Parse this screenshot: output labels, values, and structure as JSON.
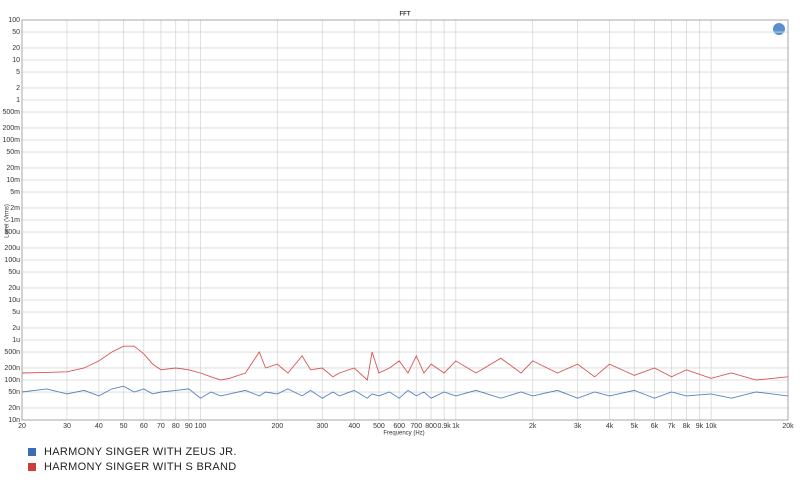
{
  "chart_data": {
    "type": "line",
    "title": "FFT",
    "x_label": "Frequency (Hz)",
    "y_label": "Level (Vrms)",
    "log_x": true,
    "log_y": true,
    "grid": true,
    "legend": "bottom-left",
    "xlim": [
      20,
      20000
    ],
    "ylim": [
      1e-08,
      100
    ],
    "xticks": [
      20,
      30,
      40,
      50,
      60,
      70,
      80,
      90,
      100,
      200,
      300,
      400,
      500,
      600,
      700,
      800,
      {
        "value": 900,
        "label": "0.9k"
      },
      {
        "value": 1000,
        "label": "1k"
      },
      {
        "value": 2000,
        "label": "2k"
      },
      {
        "value": 3000,
        "label": "3k"
      },
      {
        "value": 4000,
        "label": "4k"
      },
      {
        "value": 5000,
        "label": "5k"
      },
      {
        "value": 6000,
        "label": "6k"
      },
      {
        "value": 7000,
        "label": "7k"
      },
      {
        "value": 8000,
        "label": "8k"
      },
      {
        "value": 9000,
        "label": "9k"
      },
      {
        "value": 10000,
        "label": "10k"
      },
      {
        "value": 20000,
        "label": "20k"
      }
    ],
    "yticks": [
      100,
      50,
      20,
      10,
      5,
      2,
      1,
      {
        "value": 0.5,
        "label": "500m"
      },
      {
        "value": 0.2,
        "label": "200m"
      },
      {
        "value": 0.1,
        "label": "100m"
      },
      {
        "value": 0.05,
        "label": "50m"
      },
      {
        "value": 0.02,
        "label": "20m"
      },
      {
        "value": 0.01,
        "label": "10m"
      },
      {
        "value": 0.005,
        "label": "5m"
      },
      {
        "value": 0.002,
        "label": "2m"
      },
      {
        "value": 0.001,
        "label": "1m"
      },
      {
        "value": 0.0005,
        "label": "500u"
      },
      {
        "value": 0.0002,
        "label": "200u"
      },
      {
        "value": 0.0001,
        "label": "100u"
      },
      {
        "value": 5e-05,
        "label": "50u"
      },
      {
        "value": 2e-05,
        "label": "20u"
      },
      {
        "value": 1e-05,
        "label": "10u"
      },
      {
        "value": 5e-06,
        "label": "5u"
      },
      {
        "value": 2e-06,
        "label": "2u"
      },
      {
        "value": 1e-06,
        "label": "1u"
      },
      {
        "value": 5e-07,
        "label": "500n"
      },
      {
        "value": 2e-07,
        "label": "200n"
      },
      {
        "value": 1e-07,
        "label": "100n"
      },
      {
        "value": 5e-08,
        "label": "50n"
      },
      {
        "value": 2e-08,
        "label": "20n"
      },
      {
        "value": 1e-08,
        "label": "10n"
      }
    ],
    "x": [
      20,
      25,
      30,
      35,
      40,
      45,
      50,
      55,
      60,
      65,
      70,
      80,
      90,
      100,
      110,
      120,
      130,
      150,
      170,
      180,
      200,
      220,
      250,
      270,
      300,
      330,
      350,
      400,
      450,
      470,
      500,
      550,
      600,
      650,
      700,
      750,
      800,
      900,
      1000,
      1200,
      1500,
      1800,
      2000,
      2500,
      3000,
      3500,
      4000,
      5000,
      6000,
      7000,
      8000,
      10000,
      12000,
      15000,
      20000
    ],
    "series": [
      {
        "name": "HARMONY SINGER WITH ZEUS JR.",
        "color": "#3a6db5",
        "values": [
          5e-08,
          6e-08,
          4.5e-08,
          5.5e-08,
          4e-08,
          6e-08,
          7e-08,
          5e-08,
          6e-08,
          4.5e-08,
          5e-08,
          5.5e-08,
          6e-08,
          3.5e-08,
          5e-08,
          4e-08,
          4.5e-08,
          5.5e-08,
          4e-08,
          5e-08,
          4.5e-08,
          6e-08,
          4e-08,
          5.5e-08,
          3.5e-08,
          5e-08,
          4e-08,
          5.5e-08,
          3.5e-08,
          4.5e-08,
          4e-08,
          5e-08,
          3.5e-08,
          5.5e-08,
          4e-08,
          5e-08,
          3.5e-08,
          5e-08,
          4e-08,
          5.5e-08,
          3.5e-08,
          5e-08,
          4e-08,
          5.5e-08,
          3.5e-08,
          5e-08,
          4e-08,
          5.5e-08,
          3.5e-08,
          5e-08,
          4e-08,
          4.5e-08,
          3.5e-08,
          5e-08,
          4e-08
        ]
      },
      {
        "name": "HARMONY SINGER WITH S BRAND",
        "color": "#d03a3a",
        "values": [
          1.5e-07,
          1.55e-07,
          1.6e-07,
          2e-07,
          3e-07,
          5e-07,
          7e-07,
          7e-07,
          4.5e-07,
          2.5e-07,
          1.8e-07,
          2e-07,
          1.8e-07,
          1.5e-07,
          1.2e-07,
          1e-07,
          1.1e-07,
          1.5e-07,
          5e-07,
          2e-07,
          2.5e-07,
          1.5e-07,
          4e-07,
          1.8e-07,
          2e-07,
          1.2e-07,
          1.5e-07,
          2e-07,
          1e-07,
          5e-07,
          1.5e-07,
          2e-07,
          3e-07,
          1.5e-07,
          4e-07,
          1.5e-07,
          2.5e-07,
          1.5e-07,
          3e-07,
          1.5e-07,
          3.5e-07,
          1.5e-07,
          3e-07,
          1.5e-07,
          2.5e-07,
          1.2e-07,
          2.5e-07,
          1.3e-07,
          2e-07,
          1.2e-07,
          1.8e-07,
          1.1e-07,
          1.5e-07,
          1e-07,
          1.2e-07
        ]
      }
    ]
  }
}
